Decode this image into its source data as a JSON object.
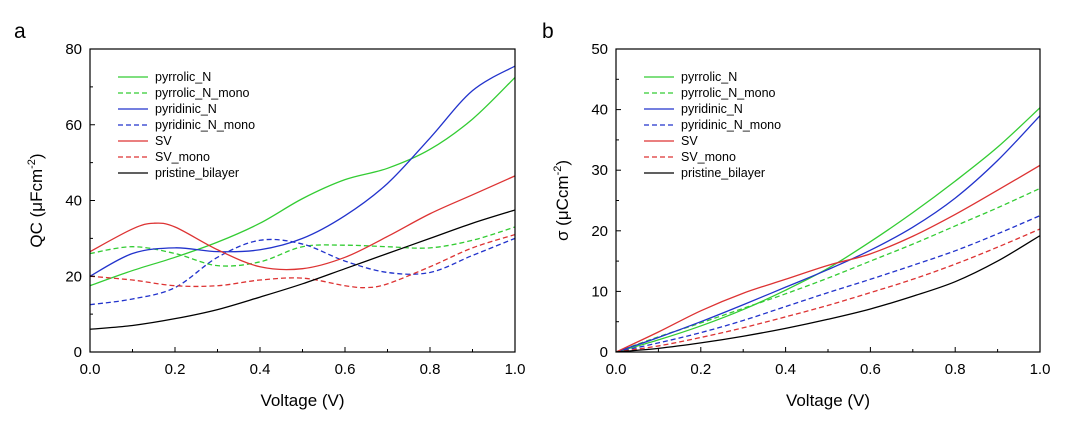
{
  "chart_data": [
    {
      "type": "line",
      "panel_label": "a",
      "xlabel": "Voltage (V)",
      "ylabel_main": "QC (",
      "ylabel_unit": "μFcm",
      "ylabel_exp": "-2",
      "ylabel_close": ")",
      "xlim": [
        0.0,
        1.0
      ],
      "ylim": [
        0,
        80
      ],
      "xticks": [
        "0.0",
        "0.2",
        "0.4",
        "0.6",
        "0.8",
        "1.0"
      ],
      "yticks": [
        "0",
        "20",
        "40",
        "60",
        "80"
      ],
      "legend_position": "top-left",
      "series": [
        {
          "name": "pyrrolic_N",
          "color": "#33cc33",
          "dash": "solid",
          "x": [
            0.0,
            0.1,
            0.2,
            0.3,
            0.4,
            0.5,
            0.6,
            0.7,
            0.8,
            0.9,
            1.0
          ],
          "y": [
            17.5,
            21.5,
            25.0,
            29.0,
            34.0,
            40.5,
            45.5,
            48.5,
            53.5,
            61.5,
            72.5
          ]
        },
        {
          "name": "pyrrolic_N_mono",
          "color": "#33cc33",
          "dash": "dashed",
          "x": [
            0.0,
            0.1,
            0.2,
            0.3,
            0.4,
            0.5,
            0.6,
            0.7,
            0.8,
            0.9,
            1.0
          ],
          "y": [
            26.0,
            27.8,
            26.0,
            22.8,
            23.8,
            27.8,
            28.2,
            27.8,
            27.5,
            29.5,
            33.0
          ]
        },
        {
          "name": "pyridinic_N",
          "color": "#2233cc",
          "dash": "solid",
          "x": [
            0.0,
            0.1,
            0.2,
            0.3,
            0.4,
            0.5,
            0.6,
            0.7,
            0.8,
            0.9,
            1.0
          ],
          "y": [
            20.0,
            26.0,
            27.5,
            26.5,
            27.0,
            30.0,
            36.0,
            44.5,
            56.5,
            69.0,
            75.5
          ]
        },
        {
          "name": "pyridinic_N_mono",
          "color": "#2233cc",
          "dash": "dashed",
          "x": [
            0.0,
            0.1,
            0.2,
            0.3,
            0.4,
            0.5,
            0.6,
            0.7,
            0.8,
            0.9,
            1.0
          ],
          "y": [
            12.5,
            14.0,
            17.0,
            25.0,
            29.5,
            28.5,
            24.0,
            21.0,
            21.0,
            25.5,
            30.0
          ]
        },
        {
          "name": "SV",
          "color": "#dd3333",
          "dash": "solid",
          "x": [
            0.0,
            0.1,
            0.15,
            0.2,
            0.3,
            0.4,
            0.5,
            0.6,
            0.7,
            0.8,
            0.9,
            1.0
          ],
          "y": [
            26.5,
            32.5,
            34.0,
            33.0,
            27.0,
            22.5,
            22.0,
            25.0,
            30.5,
            36.5,
            41.5,
            46.5
          ]
        },
        {
          "name": "SV_mono",
          "color": "#dd3333",
          "dash": "dashed",
          "x": [
            0.0,
            0.1,
            0.2,
            0.3,
            0.4,
            0.5,
            0.6,
            0.65,
            0.7,
            0.8,
            0.9,
            1.0
          ],
          "y": [
            20.0,
            19.0,
            17.5,
            17.5,
            19.0,
            19.5,
            17.5,
            17.0,
            18.0,
            22.5,
            27.5,
            31.0
          ]
        },
        {
          "name": "pristine_bilayer",
          "color": "#000000",
          "dash": "solid",
          "x": [
            0.0,
            0.1,
            0.2,
            0.3,
            0.4,
            0.5,
            0.6,
            0.7,
            0.8,
            0.9,
            1.0
          ],
          "y": [
            6.0,
            7.0,
            8.8,
            11.2,
            14.5,
            18.0,
            22.0,
            26.0,
            30.0,
            34.0,
            37.5
          ]
        }
      ]
    },
    {
      "type": "line",
      "panel_label": "b",
      "xlabel": "Voltage (V)",
      "ylabel_main": "σ (",
      "ylabel_unit": "μCcm",
      "ylabel_exp": "-2",
      "ylabel_close": ")",
      "xlim": [
        0.0,
        1.0
      ],
      "ylim": [
        0,
        50
      ],
      "xticks": [
        "0.0",
        "0.2",
        "0.4",
        "0.6",
        "0.8",
        "1.0"
      ],
      "yticks": [
        "0",
        "10",
        "20",
        "30",
        "40",
        "50"
      ],
      "legend_position": "top-left",
      "series": [
        {
          "name": "pyrrolic_N",
          "color": "#33cc33",
          "dash": "solid",
          "x": [
            0.0,
            0.1,
            0.2,
            0.3,
            0.4,
            0.5,
            0.6,
            0.7,
            0.8,
            0.9,
            1.0
          ],
          "y": [
            0.0,
            2.0,
            4.3,
            7.0,
            10.2,
            13.8,
            18.2,
            23.0,
            28.2,
            33.8,
            40.3
          ]
        },
        {
          "name": "pyrrolic_N_mono",
          "color": "#33cc33",
          "dash": "dashed",
          "x": [
            0.0,
            0.1,
            0.2,
            0.3,
            0.4,
            0.5,
            0.6,
            0.7,
            0.8,
            0.9,
            1.0
          ],
          "y": [
            0.0,
            2.5,
            4.8,
            7.2,
            9.6,
            12.2,
            15.0,
            17.8,
            20.8,
            23.8,
            27.0
          ]
        },
        {
          "name": "pyridinic_N",
          "color": "#2233cc",
          "dash": "solid",
          "x": [
            0.0,
            0.1,
            0.2,
            0.3,
            0.4,
            0.5,
            0.6,
            0.7,
            0.8,
            0.9,
            1.0
          ],
          "y": [
            0.0,
            2.4,
            5.0,
            7.8,
            10.7,
            13.6,
            16.8,
            20.6,
            25.4,
            31.6,
            39.0
          ]
        },
        {
          "name": "pyridinic_N_mono",
          "color": "#2233cc",
          "dash": "dashed",
          "x": [
            0.0,
            0.1,
            0.2,
            0.3,
            0.4,
            0.5,
            0.6,
            0.7,
            0.8,
            0.9,
            1.0
          ],
          "y": [
            0.0,
            1.5,
            3.2,
            5.2,
            7.5,
            9.8,
            12.0,
            14.3,
            16.7,
            19.5,
            22.5
          ]
        },
        {
          "name": "SV",
          "color": "#dd3333",
          "dash": "solid",
          "x": [
            0.0,
            0.1,
            0.2,
            0.3,
            0.4,
            0.5,
            0.6,
            0.7,
            0.8,
            0.9,
            1.0
          ],
          "y": [
            0.0,
            3.3,
            6.8,
            9.7,
            12.0,
            14.3,
            16.2,
            19.1,
            22.7,
            26.7,
            30.8
          ]
        },
        {
          "name": "SV_mono",
          "color": "#dd3333",
          "dash": "dashed",
          "x": [
            0.0,
            0.1,
            0.2,
            0.3,
            0.4,
            0.5,
            0.6,
            0.7,
            0.8,
            0.9,
            1.0
          ],
          "y": [
            0.0,
            1.0,
            2.4,
            4.0,
            5.8,
            7.7,
            9.8,
            12.0,
            14.5,
            17.3,
            20.3
          ]
        },
        {
          "name": "pristine_bilayer",
          "color": "#000000",
          "dash": "solid",
          "x": [
            0.0,
            0.1,
            0.2,
            0.3,
            0.4,
            0.5,
            0.6,
            0.7,
            0.8,
            0.9,
            1.0
          ],
          "y": [
            0.0,
            0.6,
            1.5,
            2.6,
            3.9,
            5.4,
            7.1,
            9.2,
            11.6,
            15.0,
            19.2
          ]
        }
      ]
    }
  ]
}
